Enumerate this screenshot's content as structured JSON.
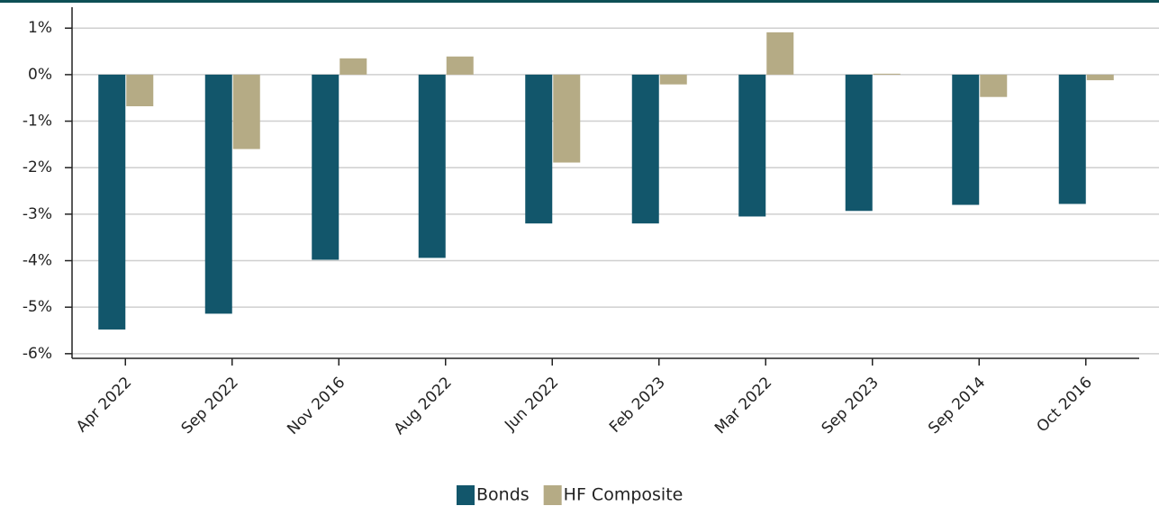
{
  "chart_data": {
    "type": "bar",
    "categories": [
      "Apr 2022",
      "Sep 2022",
      "Nov 2016",
      "Aug 2022",
      "Jun 2022",
      "Feb 2023",
      "Mar 2022",
      "Sep 2023",
      "Sep 2014",
      "Oct 2016"
    ],
    "series": [
      {
        "name": "Bonds",
        "color": "#12566b",
        "values": [
          -5.48,
          -5.14,
          -3.98,
          -3.94,
          -3.2,
          -3.2,
          -3.05,
          -2.93,
          -2.8,
          -2.78
        ]
      },
      {
        "name": "HF Composite",
        "color": "#b5ab85",
        "values": [
          -0.68,
          -1.6,
          0.35,
          0.39,
          -1.89,
          -0.21,
          0.91,
          0.02,
          -0.48,
          -0.12
        ]
      }
    ],
    "ylim": [
      -6.1,
      1.45
    ],
    "yticks": [
      {
        "value": -6,
        "label": "-6%"
      },
      {
        "value": -5,
        "label": "-5%"
      },
      {
        "value": -4,
        "label": "-4%"
      },
      {
        "value": -3,
        "label": "-3%"
      },
      {
        "value": -2,
        "label": "-2%"
      },
      {
        "value": -1,
        "label": "-1%"
      },
      {
        "value": 0,
        "label": "0%"
      },
      {
        "value": 1,
        "label": "1%"
      }
    ],
    "grid": true,
    "legend": "bottom"
  }
}
